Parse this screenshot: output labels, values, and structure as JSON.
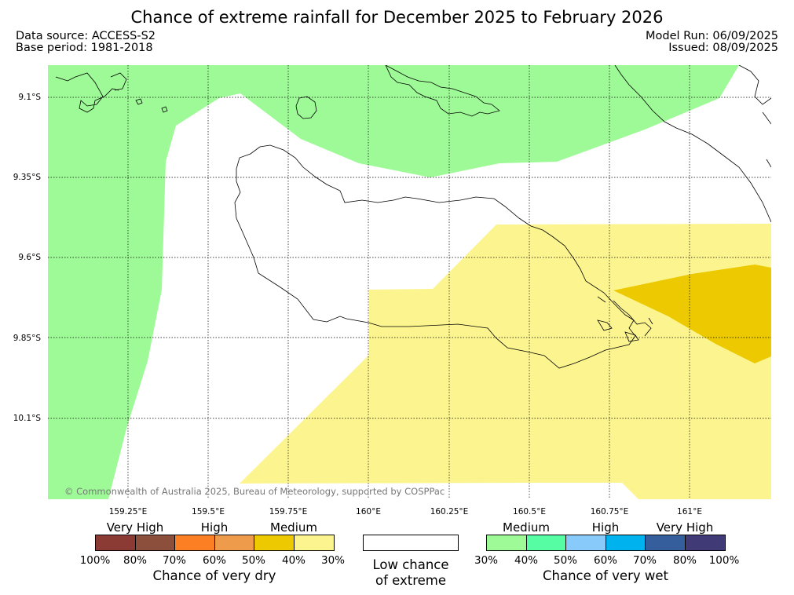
{
  "title": "Chance of extreme rainfall for December 2025 to February 2026",
  "data_source": "Data source: ACCESS-S2",
  "base_period": "Base period: 1981-2018",
  "model_run": "Model Run: 06/09/2025",
  "issued": "Issued: 08/09/2025",
  "copyright": "© Commonwealth of Australia 2025, Bureau of Meteorology, supported by COSPPac",
  "lat_labels": [
    "9.1°S",
    "9.35°S",
    "9.6°S",
    "9.85°S",
    "10.1°S"
  ],
  "lon_labels": [
    "159.25°E",
    "159.5°E",
    "159.75°E",
    "160°E",
    "160.25°E",
    "160.5°E",
    "160.75°E",
    "161°E"
  ],
  "colors": {
    "wet_medium": "#9dfa96",
    "dry_medium_light": "#fcf58f",
    "dry_medium_dark": "#ecc900",
    "land_outline": "#000000"
  },
  "legend": {
    "dry": {
      "title": "Chance of very dry",
      "categories": [
        "Very High",
        "High",
        "Medium"
      ],
      "colors": [
        "#8c3a34",
        "#8b4f3c",
        "#fd7f24",
        "#ee9c4c",
        "#ecc900",
        "#fcf58f"
      ],
      "ticks": [
        "100%",
        "80%",
        "70%",
        "60%",
        "50%",
        "40%",
        "30%"
      ]
    },
    "neutral": {
      "line1": "Low chance",
      "line2": "of extreme"
    },
    "wet": {
      "title": "Chance of very wet",
      "categories": [
        "Medium",
        "High",
        "Very High"
      ],
      "colors": [
        "#9dfa96",
        "#56fda3",
        "#88cbfa",
        "#00b2ee",
        "#355e9d",
        "#403a76"
      ],
      "ticks": [
        "30%",
        "40%",
        "50%",
        "60%",
        "70%",
        "80%",
        "100%"
      ]
    }
  }
}
